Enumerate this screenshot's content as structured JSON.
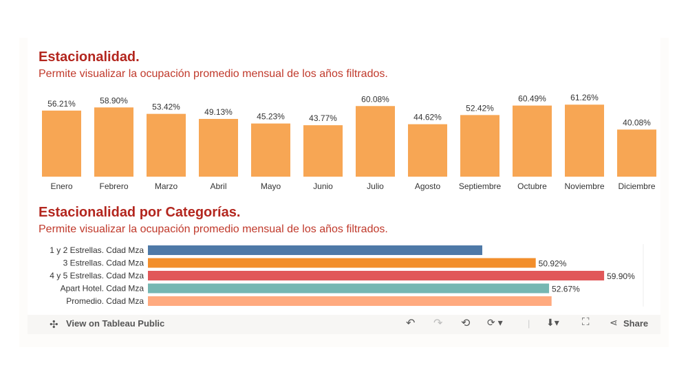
{
  "chart_data": [
    {
      "type": "bar",
      "title": "Estacionalidad.",
      "subtitle": "Permite visualizar la ocupación promedio mensual de los  años filtrados.",
      "categories": [
        "Enero",
        "Febrero",
        "Marzo",
        "Abril",
        "Mayo",
        "Junio",
        "Julio",
        "Agosto",
        "Septiembre",
        "Octubre",
        "Noviembre",
        "Diciembre"
      ],
      "values": [
        56.21,
        58.9,
        53.42,
        49.13,
        45.23,
        43.77,
        60.08,
        44.62,
        52.42,
        60.49,
        61.26,
        40.08
      ],
      "labels": [
        "56.21%",
        "58.90%",
        "53.42%",
        "49.13%",
        "45.23%",
        "43.77%",
        "60.08%",
        "44.62%",
        "52.42%",
        "60.49%",
        "61.26%",
        "40.08%"
      ],
      "color": "#f7a654",
      "ylim": [
        0,
        65
      ]
    },
    {
      "type": "bar",
      "orientation": "horizontal",
      "title": "Estacionalidad por Categorías.",
      "subtitle": "Permite visualizar la ocupación promedio mensual de los  años filtrados.",
      "categories": [
        "1 y 2 Estrellas. Cdad Mza",
        "3 Estrellas. Cdad Mza",
        "4 y 5 Estrellas. Cdad Mza",
        "Apart Hotel. Cdad Mza",
        "Promedio. Cdad Mza"
      ],
      "values": [
        43.9,
        50.92,
        59.9,
        52.67,
        53.0
      ],
      "labels": [
        "",
        "50.92%",
        "59.90%",
        "52.67%",
        ""
      ],
      "colors": [
        "#4e79a7",
        "#f28e2b",
        "#e15759",
        "#76b7b2",
        "#ffaa7f"
      ],
      "xlim": [
        0,
        65
      ]
    }
  ],
  "toolbar": {
    "view_label": "View on Tableau Public",
    "share_label": "Share"
  }
}
